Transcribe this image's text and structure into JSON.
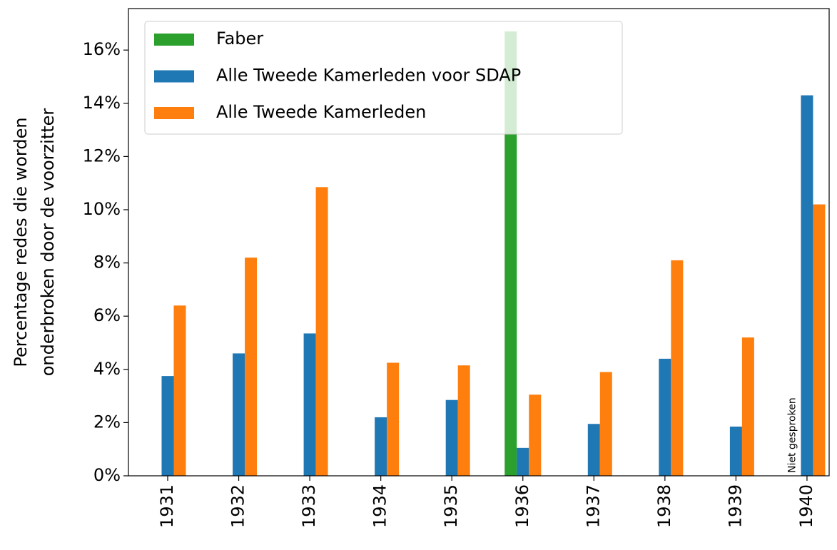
{
  "chart_data": {
    "type": "bar",
    "ylabel": [
      "Percentage redes die worden",
      "onderbroken door de voorzitter"
    ],
    "categories": [
      "1931",
      "1932",
      "1933",
      "1934",
      "1935",
      "1936",
      "1937",
      "1938",
      "1939",
      "1940"
    ],
    "series": [
      {
        "name": "Faber",
        "color": "#2ca02c",
        "values": [
          0,
          0,
          0,
          0,
          0,
          16.7,
          0,
          0,
          0,
          null
        ]
      },
      {
        "name": "Alle Tweede Kamerleden voor SDAP",
        "color": "#1f77b4",
        "values": [
          3.75,
          4.6,
          5.35,
          2.2,
          2.85,
          1.05,
          1.95,
          4.4,
          1.85,
          14.3
        ]
      },
      {
        "name": "Alle Tweede Kamerleden",
        "color": "#ff7f0e",
        "values": [
          6.4,
          8.2,
          10.85,
          4.25,
          4.15,
          3.05,
          3.9,
          8.1,
          5.2,
          10.2
        ]
      }
    ],
    "annotations": [
      {
        "text": "Niet gesproken",
        "category": "1940",
        "color": "#2ca02c"
      }
    ],
    "ylim": [
      0,
      17.56
    ],
    "yticks": [
      {
        "value": 0,
        "label": "0%"
      },
      {
        "value": 2,
        "label": "2%"
      },
      {
        "value": 4,
        "label": "4%"
      },
      {
        "value": 6,
        "label": "6%"
      },
      {
        "value": 8,
        "label": "8%"
      },
      {
        "value": 10,
        "label": "10%"
      },
      {
        "value": 12,
        "label": "12%"
      },
      {
        "value": 14,
        "label": "14%"
      },
      {
        "value": 16,
        "label": "16%"
      }
    ],
    "legend": "upper left"
  }
}
